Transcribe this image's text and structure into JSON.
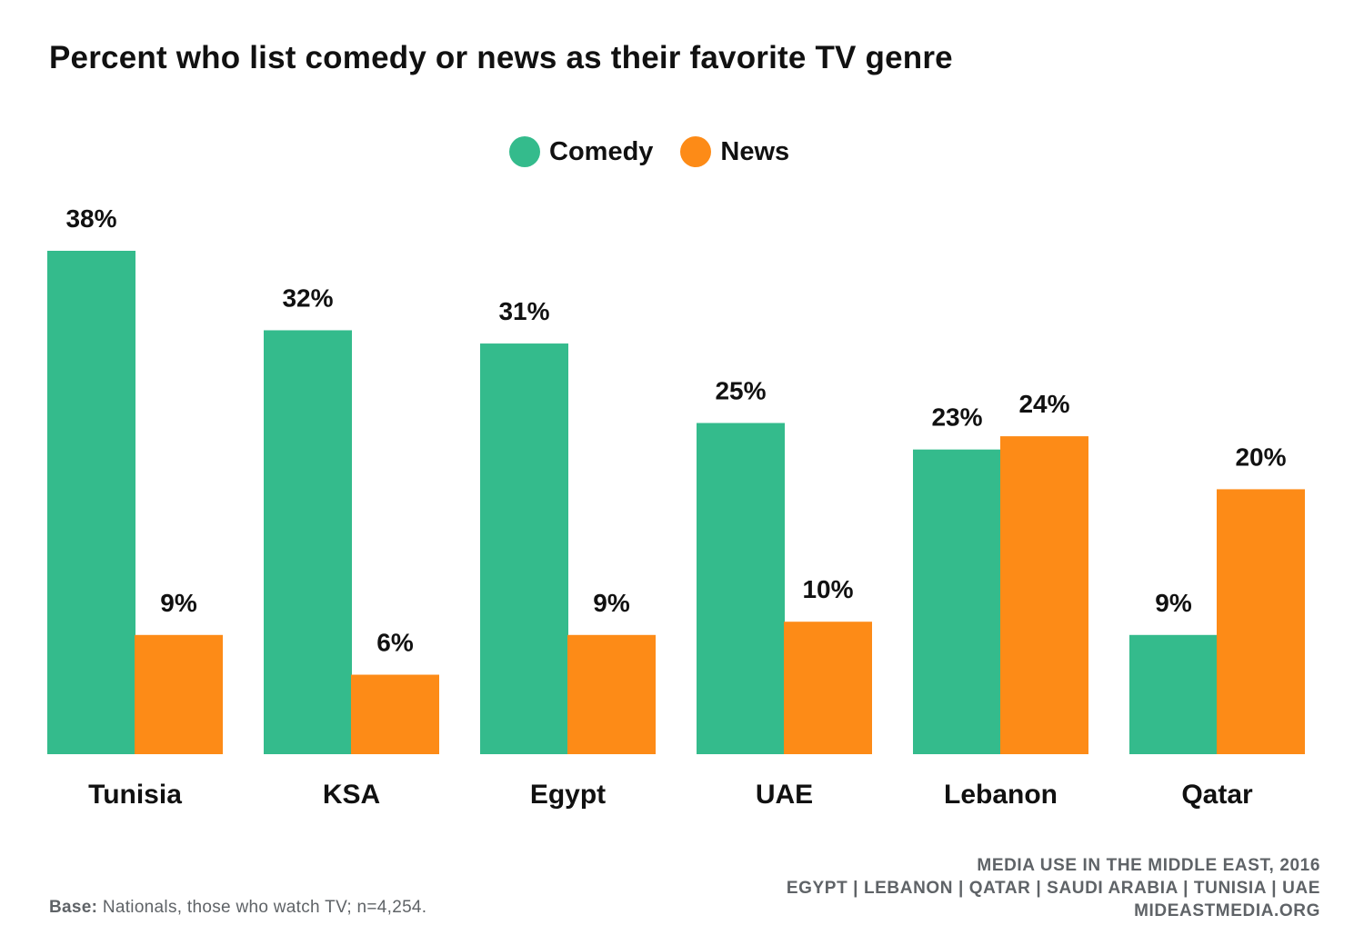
{
  "chart_data": {
    "type": "bar",
    "title": "Percent who list comedy or news as their favorite TV genre",
    "categories": [
      "Tunisia",
      "KSA",
      "Egypt",
      "UAE",
      "Lebanon",
      "Qatar"
    ],
    "series": [
      {
        "name": "Comedy",
        "color": "#34bb8c",
        "values": [
          38,
          32,
          31,
          25,
          23,
          9
        ],
        "labels": [
          "38%",
          "32%",
          "31%",
          "25%",
          "23%",
          "9%"
        ]
      },
      {
        "name": "News",
        "color": "#fd8b17",
        "values": [
          9,
          6,
          9,
          10,
          24,
          20
        ],
        "labels": [
          "9%",
          "6%",
          "9%",
          "10%",
          "24%",
          "20%"
        ]
      }
    ],
    "ylim": [
      0,
      38
    ],
    "xlabel": "",
    "ylabel": "",
    "grid": false,
    "legend_position": "top-center"
  },
  "footer": {
    "source_lines": [
      "MEDIA USE IN THE MIDDLE EAST, 2016",
      "EGYPT | LEBANON | QATAR | SAUDI ARABIA | TUNISIA | UAE",
      "MIDEASTMEDIA.ORG"
    ],
    "base_label": "Base:",
    "base_text": " Nationals, those who watch TV; n=4,254."
  }
}
